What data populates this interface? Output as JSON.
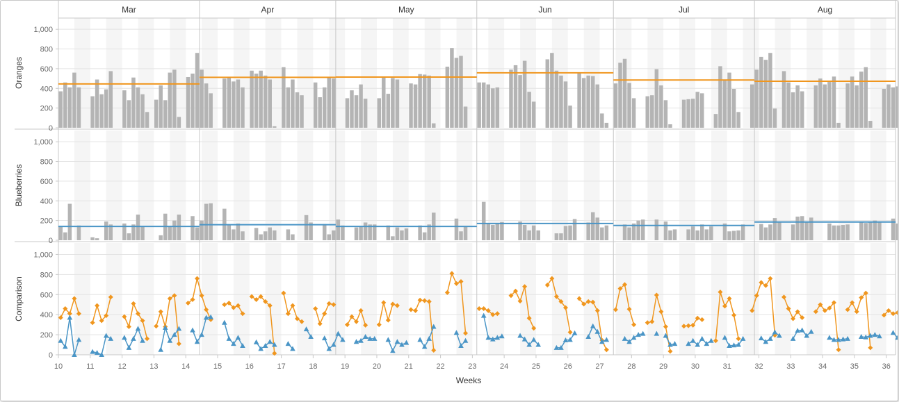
{
  "chart_data": {
    "type": "bar",
    "xlabel": "Weeks",
    "months": [
      "Mar",
      "Apr",
      "May",
      "Jun",
      "Jul",
      "Aug"
    ],
    "month_boundaries_weeks": [
      10,
      14.43,
      18.71,
      23.14,
      27.43,
      31.86,
      36.29
    ],
    "x_ticks": [
      10,
      11,
      12,
      13,
      14,
      15,
      16,
      17,
      18,
      19,
      20,
      21,
      22,
      23,
      24,
      25,
      26,
      27,
      28,
      29,
      30,
      31,
      32,
      33,
      34,
      35,
      36
    ],
    "xlim": [
      10,
      36.29
    ],
    "ylim": [
      0,
      1100
    ],
    "y_ticks": [
      0,
      200,
      400,
      600,
      800,
      1000
    ],
    "y_tick_labels": [
      "0",
      "200",
      "400",
      "600",
      "800",
      "1,000"
    ],
    "panels": [
      {
        "ylabel": "Oranges",
        "type": "bar"
      },
      {
        "ylabel": "Blueberries",
        "type": "bar"
      },
      {
        "ylabel": "Comparison",
        "type": "line"
      }
    ],
    "colors": {
      "bars": "#b4b4b4",
      "oranges": "#f0961e",
      "blueberries": "#4a95c6",
      "grid": "#e3e3e3",
      "band": "#f5f5f5"
    },
    "monthly_averages": {
      "oranges": [
        445,
        512,
        515,
        558,
        485,
        472
      ],
      "blueberries": [
        140,
        158,
        140,
        170,
        150,
        185
      ]
    },
    "series": [
      {
        "name": "Oranges",
        "values": [
          370,
          460,
          410,
          560,
          410,
          null,
          null,
          320,
          490,
          340,
          390,
          575,
          null,
          null,
          380,
          280,
          510,
          410,
          340,
          160,
          null,
          285,
          430,
          280,
          560,
          590,
          110,
          null,
          515,
          550,
          760,
          590,
          450,
          350,
          null,
          null,
          500,
          515,
          470,
          490,
          410,
          null,
          580,
          550,
          580,
          530,
          490,
          15,
          null,
          615,
          410,
          490,
          360,
          330,
          null,
          null,
          460,
          310,
          410,
          510,
          500,
          null,
          null,
          300,
          380,
          330,
          440,
          295,
          null,
          null,
          300,
          520,
          345,
          505,
          490,
          null,
          null,
          450,
          440,
          545,
          540,
          530,
          45,
          null,
          null,
          620,
          810,
          710,
          730,
          215,
          null,
          null,
          460,
          460,
          440,
          400,
          410,
          null,
          null,
          590,
          635,
          535,
          680,
          365,
          265,
          null,
          null,
          695,
          760,
          580,
          530,
          470,
          225,
          null,
          560,
          505,
          530,
          525,
          440,
          145,
          50,
          null,
          450,
          660,
          700,
          455,
          300,
          null,
          null,
          320,
          330,
          595,
          430,
          280,
          35,
          null,
          null,
          285,
          290,
          295,
          365,
          350,
          null,
          null,
          140,
          625,
          485,
          560,
          395,
          160,
          null,
          null,
          440,
          590,
          720,
          690,
          760,
          195,
          null,
          575,
          460,
          360,
          430,
          370,
          null,
          null,
          430,
          500,
          440,
          465,
          520,
          50,
          null,
          450,
          520,
          430,
          570,
          615,
          70,
          null,
          null,
          395,
          440,
          410,
          420,
          465,
          null,
          null,
          null,
          335
        ]
      },
      {
        "name": "Blueberries",
        "values": [
          140,
          80,
          370,
          0,
          150,
          null,
          null,
          30,
          20,
          0,
          190,
          160,
          null,
          null,
          170,
          70,
          160,
          260,
          140,
          null,
          null,
          null,
          50,
          270,
          140,
          200,
          260,
          null,
          null,
          245,
          130,
          200,
          370,
          375,
          null,
          null,
          320,
          160,
          110,
          170,
          90,
          null,
          null,
          125,
          60,
          90,
          130,
          100,
          null,
          null,
          110,
          60,
          null,
          null,
          255,
          180,
          null,
          null,
          165,
          60,
          100,
          210,
          150,
          null,
          null,
          130,
          140,
          180,
          160,
          160,
          null,
          null,
          150,
          40,
          130,
          100,
          120,
          null,
          null,
          150,
          80,
          160,
          280,
          null,
          null,
          null,
          null,
          220,
          90,
          140,
          null,
          null,
          null,
          390,
          170,
          155,
          170,
          185,
          null,
          null,
          null,
          190,
          155,
          100,
          150,
          100,
          null,
          null,
          null,
          70,
          70,
          145,
          150,
          215,
          null,
          null,
          180,
          285,
          230,
          130,
          150,
          null,
          null,
          null,
          160,
          130,
          170,
          200,
          210,
          null,
          null,
          210,
          null,
          190,
          100,
          110,
          null,
          null,
          110,
          140,
          100,
          160,
          110,
          140,
          null,
          null,
          170,
          90,
          95,
          100,
          160,
          null,
          null,
          null,
          165,
          130,
          160,
          225,
          190,
          null,
          null,
          160,
          240,
          245,
          190,
          230,
          null,
          null,
          null,
          170,
          150,
          150,
          155,
          160,
          null,
          null,
          180,
          175,
          190,
          200,
          185,
          null,
          null,
          220,
          170,
          130,
          170,
          145,
          null,
          null,
          null,
          null,
          null,
          160
        ]
      }
    ]
  }
}
